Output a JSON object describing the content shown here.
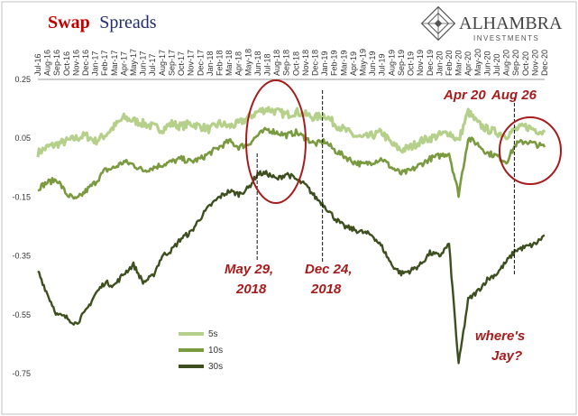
{
  "chart_data": {
    "type": "line",
    "title_part1": "Swap",
    "title_part2": "Spreads",
    "ylim": [
      -0.75,
      0.25
    ],
    "yticks": [
      "0.25",
      "0.05",
      "-0.15",
      "-0.35",
      "-0.55",
      "-0.75"
    ],
    "xlim": [
      "2016-07",
      "2020-12"
    ],
    "xticks": [
      "Jul-16",
      "Aug-16",
      "Sep-16",
      "Oct-16",
      "Nov-16",
      "Dec-16",
      "Jan-17",
      "Feb-17",
      "Mar-17",
      "Apr-17",
      "May-17",
      "Jun-17",
      "Jul-17",
      "Aug-17",
      "Sep-17",
      "Oct-17",
      "Nov-17",
      "Dec-17",
      "Jan-18",
      "Feb-18",
      "Mar-18",
      "Apr-18",
      "May-18",
      "Jun-18",
      "Jul-18",
      "Aug-18",
      "Sep-18",
      "Oct-18",
      "Nov-18",
      "Dec-18",
      "Jan-19",
      "Feb-19",
      "Mar-19",
      "Apr-19",
      "May-19",
      "Jun-19",
      "Jul-19",
      "Aug-19",
      "Sep-19",
      "Oct-19",
      "Nov-19",
      "Dec-19",
      "Jan-20",
      "Feb-20",
      "Mar-20",
      "Apr-20",
      "May-20",
      "Jun-20",
      "Jul-20",
      "Aug-20",
      "Sep-20",
      "Oct-20",
      "Nov-20",
      "Dec-20"
    ],
    "series": [
      {
        "name": "5s",
        "color": "#b5d08a",
        "values": [
          0.0,
          0.02,
          0.03,
          0.04,
          0.05,
          0.06,
          0.04,
          0.06,
          0.09,
          0.12,
          0.11,
          0.1,
          0.09,
          0.08,
          0.1,
          0.09,
          0.1,
          0.09,
          0.08,
          0.1,
          0.09,
          0.1,
          0.12,
          0.14,
          0.15,
          0.14,
          0.13,
          0.14,
          0.13,
          0.12,
          0.13,
          0.1,
          0.08,
          0.06,
          0.05,
          0.06,
          0.07,
          0.03,
          0.01,
          0.02,
          0.04,
          0.05,
          0.06,
          0.07,
          0.04,
          0.14,
          0.1,
          0.08,
          0.07,
          0.06,
          0.08,
          0.09,
          0.08,
          0.07
        ]
      },
      {
        "name": "10s",
        "color": "#7a9a3f",
        "values": [
          -0.12,
          -0.1,
          -0.09,
          -0.14,
          -0.16,
          -0.13,
          -0.1,
          -0.06,
          -0.05,
          -0.03,
          -0.04,
          -0.06,
          -0.05,
          -0.04,
          -0.03,
          -0.02,
          -0.03,
          -0.02,
          0.0,
          0.02,
          0.04,
          0.02,
          0.03,
          0.06,
          0.08,
          0.07,
          0.06,
          0.07,
          0.05,
          0.03,
          0.04,
          0.01,
          -0.01,
          -0.03,
          -0.04,
          -0.03,
          -0.02,
          -0.05,
          -0.07,
          -0.06,
          -0.04,
          -0.02,
          -0.01,
          0.0,
          -0.14,
          0.05,
          0.03,
          0.0,
          -0.01,
          -0.03,
          0.03,
          0.04,
          0.03,
          0.02
        ]
      },
      {
        "name": "30s",
        "color": "#3d4f1e",
        "values": [
          -0.4,
          -0.48,
          -0.55,
          -0.56,
          -0.58,
          -0.54,
          -0.48,
          -0.44,
          -0.45,
          -0.41,
          -0.38,
          -0.44,
          -0.42,
          -0.35,
          -0.33,
          -0.29,
          -0.27,
          -0.22,
          -0.18,
          -0.15,
          -0.13,
          -0.14,
          -0.12,
          -0.07,
          -0.07,
          -0.09,
          -0.07,
          -0.09,
          -0.11,
          -0.15,
          -0.18,
          -0.22,
          -0.25,
          -0.26,
          -0.27,
          -0.28,
          -0.32,
          -0.38,
          -0.41,
          -0.4,
          -0.38,
          -0.34,
          -0.35,
          -0.31,
          -0.72,
          -0.5,
          -0.47,
          -0.43,
          -0.41,
          -0.37,
          -0.33,
          -0.32,
          -0.31,
          -0.28
        ]
      }
    ],
    "legend_position": "bottom-left",
    "annotations": [
      {
        "text": "May 29,",
        "line2": "2018",
        "x": "2018-05-29"
      },
      {
        "text": "Dec 24,",
        "line2": "2018",
        "x": "2018-12-24"
      },
      {
        "text": "Apr 20",
        "x": "2020-04-20"
      },
      {
        "text": "Aug 26",
        "x": "2020-08-26"
      },
      {
        "text": "where's",
        "line2": "Jay?"
      }
    ]
  },
  "logo": {
    "name": "ALHAMBRA",
    "sub": "INVESTMENTS"
  }
}
